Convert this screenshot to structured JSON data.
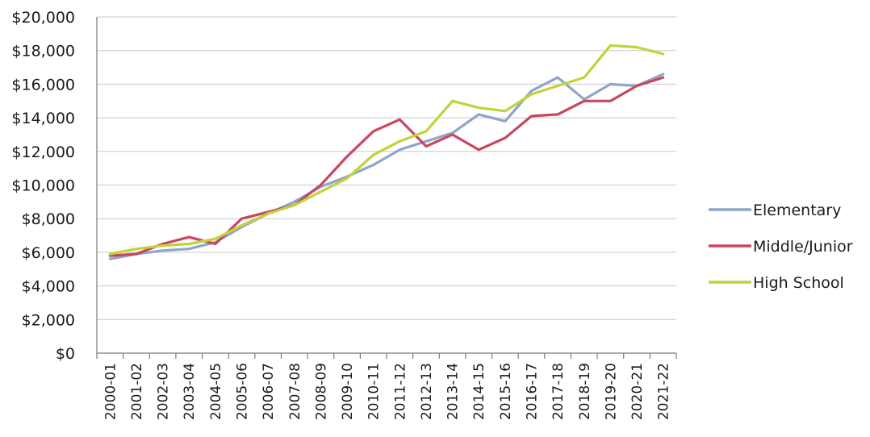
{
  "chart_data": {
    "type": "line",
    "title": "",
    "xlabel": "",
    "ylabel": "",
    "categories": [
      "2000-01",
      "2001-02",
      "2002-03",
      "2003-04",
      "2004-05",
      "2005-06",
      "2006-07",
      "2007-08",
      "2008-09",
      "2009-10",
      "2010-11",
      "2011-12",
      "2012-13",
      "2013-14",
      "2014-15",
      "2015-16",
      "2016-17",
      "2017-18",
      "2018-19",
      "2019-20",
      "2020-21",
      "2021-22"
    ],
    "yticks": [
      "$0",
      "$2,000",
      "$4,000",
      "$6,000",
      "$8,000",
      "$10,000",
      "$12,000",
      "$14,000",
      "$16,000",
      "$18,000",
      "$20,000"
    ],
    "ylim": [
      0,
      20000
    ],
    "grid": true,
    "legend_position": "right",
    "series": [
      {
        "name": "Elementary",
        "color": "#8fa6c9",
        "values": [
          5600,
          5900,
          6100,
          6200,
          6600,
          7500,
          8300,
          9000,
          9900,
          10500,
          11200,
          12100,
          12600,
          13100,
          14200,
          13800,
          15600,
          16400,
          15100,
          16000,
          15900,
          16600
        ]
      },
      {
        "name": "Middle/Junior",
        "color": "#c8465f",
        "values": [
          5800,
          5900,
          6500,
          6900,
          6500,
          8000,
          8400,
          8800,
          10000,
          11700,
          13200,
          13900,
          12300,
          13000,
          12100,
          12800,
          14100,
          14200,
          15000,
          15000,
          15900,
          16400
        ]
      },
      {
        "name": "High School",
        "color": "#c2d33a",
        "values": [
          5900,
          6200,
          6400,
          6500,
          6800,
          7600,
          8300,
          8800,
          9600,
          10400,
          11800,
          12600,
          13200,
          15000,
          14600,
          14400,
          15400,
          15900,
          16400,
          18300,
          18200,
          17800
        ]
      }
    ]
  }
}
